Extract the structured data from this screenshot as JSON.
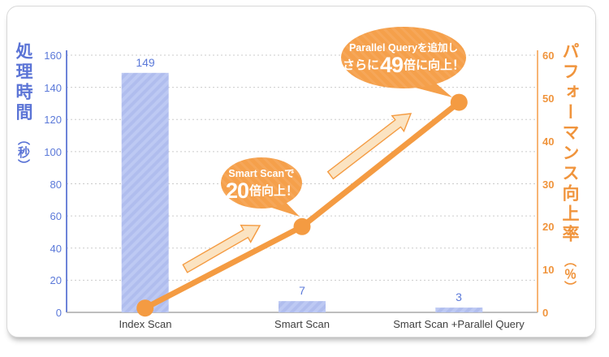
{
  "chart_data": {
    "type": "bar+line combo",
    "categories": [
      "Index Scan",
      "Smart Scan",
      "Smart Scan +Parallel Query"
    ],
    "series": [
      {
        "name": "処理時間（秒）",
        "type": "bar",
        "axis": "left",
        "values": [
          149,
          7,
          3
        ]
      },
      {
        "name": "パフォーマンス向上率",
        "type": "line",
        "axis": "right",
        "values": [
          1,
          20,
          49
        ]
      }
    ],
    "left_axis": {
      "label": "処理時間",
      "unit": "（秒）",
      "min": 0,
      "max": 160,
      "ticks": [
        160,
        140,
        120,
        100,
        80,
        60,
        40,
        20,
        0
      ]
    },
    "right_axis": {
      "label": "パフォーマンス向上率",
      "unit": "（％）",
      "min": 0,
      "max": 60,
      "ticks": [
        60,
        50,
        40,
        30,
        20,
        10,
        0
      ]
    },
    "grid": true,
    "legend": "none",
    "annotations": [
      {
        "target": "Smart Scan",
        "line1": "Smart Scanで",
        "line2_prefix": "",
        "big": "20",
        "line2_suffix": "倍向上！"
      },
      {
        "target": "Smart Scan +Parallel Query",
        "line1": "Parallel Queryを追加し",
        "line2_prefix": "さらに",
        "big": "49",
        "line2_suffix": "倍に向上！"
      }
    ],
    "colors": {
      "bar_fill": "#b0bdee",
      "bar_stripe": "#bdc9f3",
      "bar_label": "#5b79d9",
      "left_axis_color": "#6d83d8",
      "right_axis_line": "#f7b575",
      "right_axis_text": "#f0943c",
      "line_color": "#f49b42",
      "grid_color": "#cbcbcb",
      "x_axis_color": "#a8a8a8",
      "x_label_color": "#3f3f3f",
      "arrow_fill": "#fbe3c1",
      "bubble_fill": "#f5a04b",
      "bubble_text": "#ffffff"
    }
  }
}
